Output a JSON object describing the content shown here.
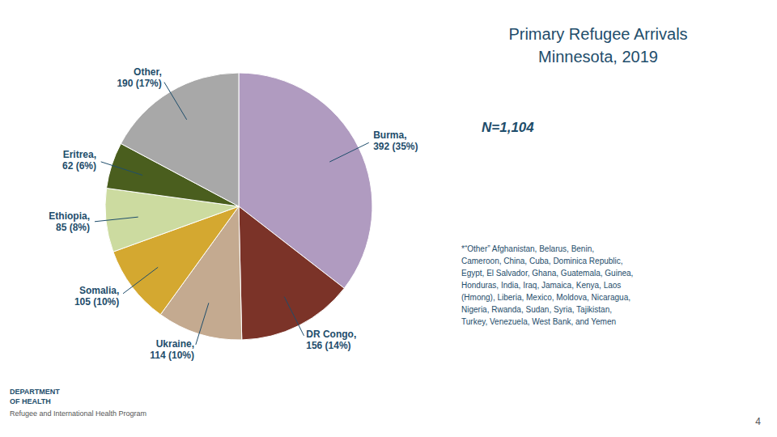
{
  "chart_data": {
    "type": "pie",
    "title": "Primary Refugee Arrivals\nMinnesota, 2019",
    "subtitle": "N=1,104",
    "categories": [
      "Burma",
      "DR Congo",
      "Ukraine",
      "Somalia",
      "Ethiopia",
      "Eritrea",
      "Other"
    ],
    "values": [
      392,
      156,
      114,
      105,
      85,
      62,
      190
    ],
    "value_labels": [
      "Burma,\n392 (35%)",
      "DR Congo,\n156 (14%)",
      "Ukraine,\n114 (10%)",
      "Somalia,\n105 (10%)",
      "Ethiopia,\n85 (8%)",
      "Eritrea,\n62 (6%)",
      "Other,\n190 (17%)"
    ],
    "colors": [
      "#b09bc0",
      "#7b3328",
      "#c4aa90",
      "#d4a830",
      "#ccdba0",
      "#4a5e1e",
      "#a8a8a8"
    ],
    "data_labels": true,
    "annotations": [
      "*“Other” Afghanistan, Belarus, Benin,\nCameroon, China, Cuba, Dominica Republic,\nEgypt, El Salvador, Ghana, Guatemala, Guinea,\nHonduras, India, Iraq, Jamaica, Kenya, Laos\n(Hmong), Liberia, Mexico, Moldova, Nicaragua,\nNigeria, Rwanda, Sudan, Syria, Tajikistan,\nTurkey, Venezuela, West Bank, and Yemen",
      "4",
      "DEPARTMENT\nOF HEALTH",
      "Refugee and International Health Program"
    ]
  }
}
